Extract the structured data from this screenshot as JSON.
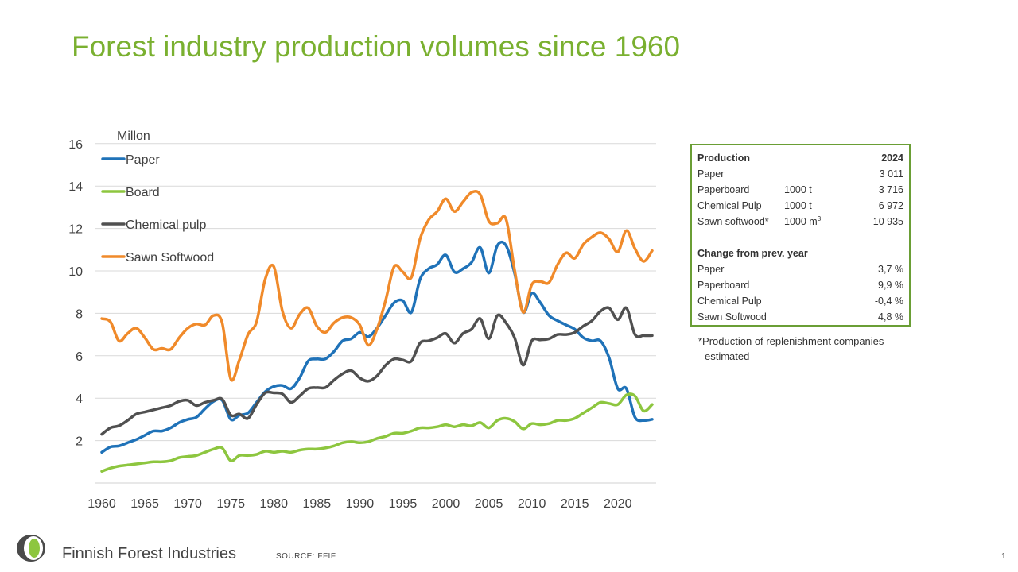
{
  "title": "Forest industry production volumes since 1960",
  "chart_data": {
    "type": "line",
    "title": "Forest industry production volumes since 1960",
    "ylabel": "Millon",
    "xlabel": "",
    "xlim": [
      1960,
      2024
    ],
    "ylim": [
      0,
      16
    ],
    "yticks": [
      2,
      4,
      6,
      8,
      10,
      12,
      14,
      16
    ],
    "xticks": [
      1960,
      1965,
      1970,
      1975,
      1980,
      1985,
      1990,
      1995,
      2000,
      2005,
      2010,
      2015,
      2020
    ],
    "grid": true,
    "legend_position": "top-left",
    "x": [
      1960,
      1961,
      1962,
      1963,
      1964,
      1965,
      1966,
      1967,
      1968,
      1969,
      1970,
      1971,
      1972,
      1973,
      1974,
      1975,
      1976,
      1977,
      1978,
      1979,
      1980,
      1981,
      1982,
      1983,
      1984,
      1985,
      1986,
      1987,
      1988,
      1989,
      1990,
      1991,
      1992,
      1993,
      1994,
      1995,
      1996,
      1997,
      1998,
      1999,
      2000,
      2001,
      2002,
      2003,
      2004,
      2005,
      2006,
      2007,
      2008,
      2009,
      2010,
      2011,
      2012,
      2013,
      2014,
      2015,
      2016,
      2017,
      2018,
      2019,
      2020,
      2021,
      2022,
      2023,
      2024
    ],
    "series": [
      {
        "name": "Paper",
        "color": "#1f72b8",
        "values": [
          1.45,
          1.7,
          1.75,
          1.9,
          2.05,
          2.25,
          2.45,
          2.45,
          2.6,
          2.85,
          3.0,
          3.1,
          3.5,
          3.85,
          3.9,
          3.0,
          3.2,
          3.3,
          3.8,
          4.3,
          4.55,
          4.6,
          4.45,
          4.95,
          5.75,
          5.85,
          5.85,
          6.2,
          6.7,
          6.8,
          7.1,
          6.9,
          7.3,
          7.9,
          8.5,
          8.6,
          8.05,
          9.6,
          10.1,
          10.3,
          10.75,
          9.95,
          10.1,
          10.4,
          11.1,
          9.9,
          11.2,
          11.2,
          9.9,
          8.05,
          8.95,
          8.5,
          7.9,
          7.65,
          7.45,
          7.25,
          6.85,
          6.7,
          6.7,
          5.9,
          4.45,
          4.45,
          3.1,
          2.95,
          3.0
        ]
      },
      {
        "name": "Board",
        "color": "#8dc63f",
        "values": [
          0.55,
          0.7,
          0.8,
          0.85,
          0.9,
          0.95,
          1.0,
          1.0,
          1.05,
          1.2,
          1.25,
          1.3,
          1.45,
          1.6,
          1.65,
          1.05,
          1.3,
          1.3,
          1.35,
          1.5,
          1.45,
          1.5,
          1.45,
          1.55,
          1.6,
          1.6,
          1.65,
          1.75,
          1.9,
          1.95,
          1.9,
          1.95,
          2.1,
          2.2,
          2.35,
          2.35,
          2.45,
          2.6,
          2.6,
          2.65,
          2.75,
          2.65,
          2.75,
          2.7,
          2.85,
          2.6,
          2.95,
          3.05,
          2.9,
          2.55,
          2.8,
          2.75,
          2.8,
          2.95,
          2.95,
          3.05,
          3.3,
          3.55,
          3.8,
          3.75,
          3.7,
          4.15,
          4.1,
          3.4,
          3.7
        ]
      },
      {
        "name": "Chemical pulp",
        "color": "#505050",
        "values": [
          2.3,
          2.6,
          2.7,
          2.95,
          3.25,
          3.35,
          3.45,
          3.55,
          3.65,
          3.85,
          3.9,
          3.65,
          3.8,
          3.9,
          3.95,
          3.2,
          3.25,
          3.05,
          3.7,
          4.25,
          4.25,
          4.2,
          3.8,
          4.1,
          4.45,
          4.5,
          4.5,
          4.85,
          5.15,
          5.3,
          4.95,
          4.8,
          5.05,
          5.55,
          5.85,
          5.8,
          5.75,
          6.6,
          6.7,
          6.85,
          7.05,
          6.6,
          7.05,
          7.25,
          7.75,
          6.8,
          7.9,
          7.55,
          6.85,
          5.55,
          6.7,
          6.75,
          6.8,
          7.0,
          7.0,
          7.1,
          7.4,
          7.65,
          8.1,
          8.25,
          7.7,
          8.25,
          7.0,
          6.95,
          6.95
        ]
      },
      {
        "name": "Sawn Softwood",
        "color": "#f08a2a",
        "values": [
          7.75,
          7.6,
          6.7,
          7.05,
          7.3,
          6.85,
          6.3,
          6.35,
          6.3,
          6.85,
          7.3,
          7.5,
          7.45,
          7.9,
          7.55,
          4.9,
          5.8,
          7.0,
          7.6,
          9.6,
          10.2,
          8.1,
          7.3,
          7.95,
          8.25,
          7.4,
          7.1,
          7.55,
          7.8,
          7.8,
          7.45,
          6.5,
          7.25,
          8.6,
          10.2,
          9.95,
          9.7,
          11.5,
          12.4,
          12.8,
          13.4,
          12.8,
          13.25,
          13.7,
          13.6,
          12.35,
          12.25,
          12.45,
          10.05,
          8.05,
          9.35,
          9.5,
          9.45,
          10.3,
          10.85,
          10.6,
          11.25,
          11.6,
          11.8,
          11.5,
          10.9,
          11.9,
          11.05,
          10.45,
          10.95
        ]
      }
    ]
  },
  "stats": {
    "header_label": "Production",
    "header_year": "2024",
    "production": [
      {
        "label": "Paper",
        "unit": "",
        "value": "3 011"
      },
      {
        "label": "Paperboard",
        "unit": "1000 t",
        "value": "3 716"
      },
      {
        "label": "Chemical Pulp",
        "unit": "1000 t",
        "value": "6 972"
      },
      {
        "label": "Sawn softwood*",
        "unit": "1000 m",
        "unit_sup": "3",
        "value": "10 935"
      }
    ],
    "change_header": "Change from prev. year",
    "change": [
      {
        "label": "Paper",
        "value": "3,7 %"
      },
      {
        "label": "Paperboard",
        "value": "9,9 %"
      },
      {
        "label": "Chemical Pulp",
        "value": "-0,4 %"
      },
      {
        "label": "Sawn Softwood",
        "value": "4,8 %"
      }
    ]
  },
  "footnote_line1": "*Production of replenishment companies",
  "footnote_line2": "estimated",
  "brand": "Finnish Forest Industries",
  "source": "SOURCE: FFIF",
  "page_number": "1"
}
